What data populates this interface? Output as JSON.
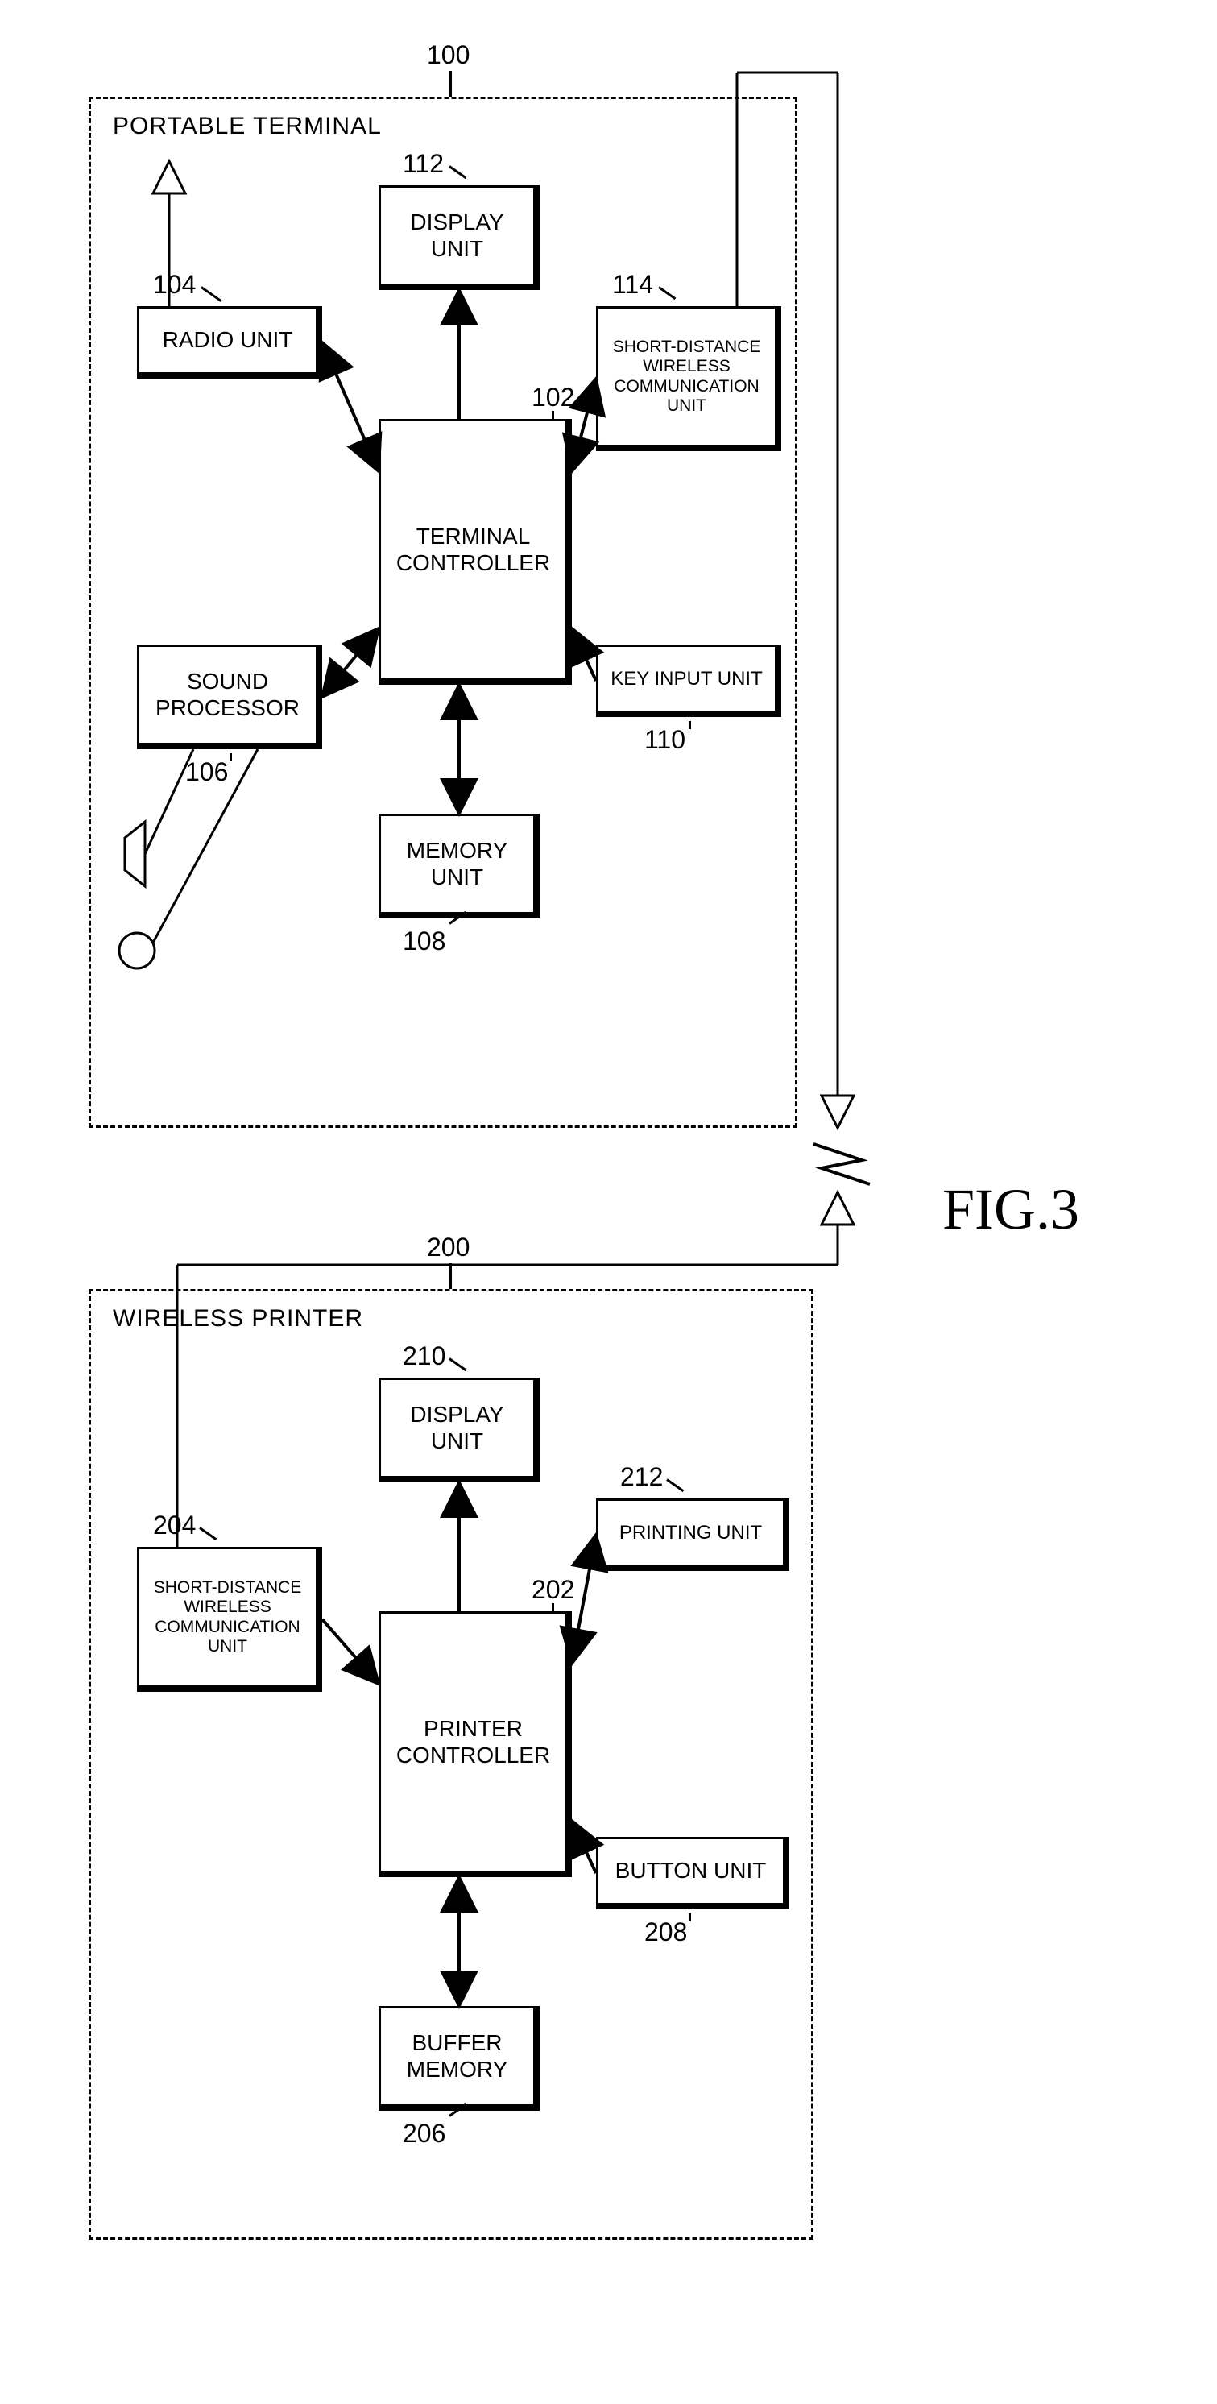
{
  "figure_label": "FIG.3",
  "terminal": {
    "title": "PORTABLE TERMINAL",
    "ref": "100",
    "blocks": {
      "radio": {
        "label": "RADIO UNIT",
        "ref": "104"
      },
      "sound": {
        "label": "SOUND\nPROCESSOR",
        "ref": "106"
      },
      "display": {
        "label": "DISPLAY\nUNIT",
        "ref": "112"
      },
      "controller": {
        "label": "TERMINAL\nCONTROLLER",
        "ref": "102"
      },
      "memory": {
        "label": "MEMORY\nUNIT",
        "ref": "108"
      },
      "comm": {
        "label": "SHORT-DISTANCE\nWIRELESS\nCOMMUNICATION UNIT",
        "ref": "114"
      },
      "key": {
        "label": "KEY INPUT UNIT",
        "ref": "110"
      }
    }
  },
  "printer": {
    "title": "WIRELESS PRINTER",
    "ref": "200",
    "blocks": {
      "comm": {
        "label": "SHORT-DISTANCE\nWIRELESS\nCOMMUNICATION UNIT",
        "ref": "204"
      },
      "display": {
        "label": "DISPLAY\nUNIT",
        "ref": "210"
      },
      "controller": {
        "label": "PRINTER\nCONTROLLER",
        "ref": "202"
      },
      "buffer": {
        "label": "BUFFER\nMEMORY",
        "ref": "206"
      },
      "printing": {
        "label": "PRINTING UNIT",
        "ref": "212"
      },
      "button": {
        "label": "BUTTON UNIT",
        "ref": "208"
      }
    }
  },
  "style": {
    "block_border": "#000000",
    "background": "#ffffff",
    "font_size_block": 28,
    "font_size_ref": 32,
    "font_size_fig": 72,
    "dash_border": "3px dashed #000"
  }
}
